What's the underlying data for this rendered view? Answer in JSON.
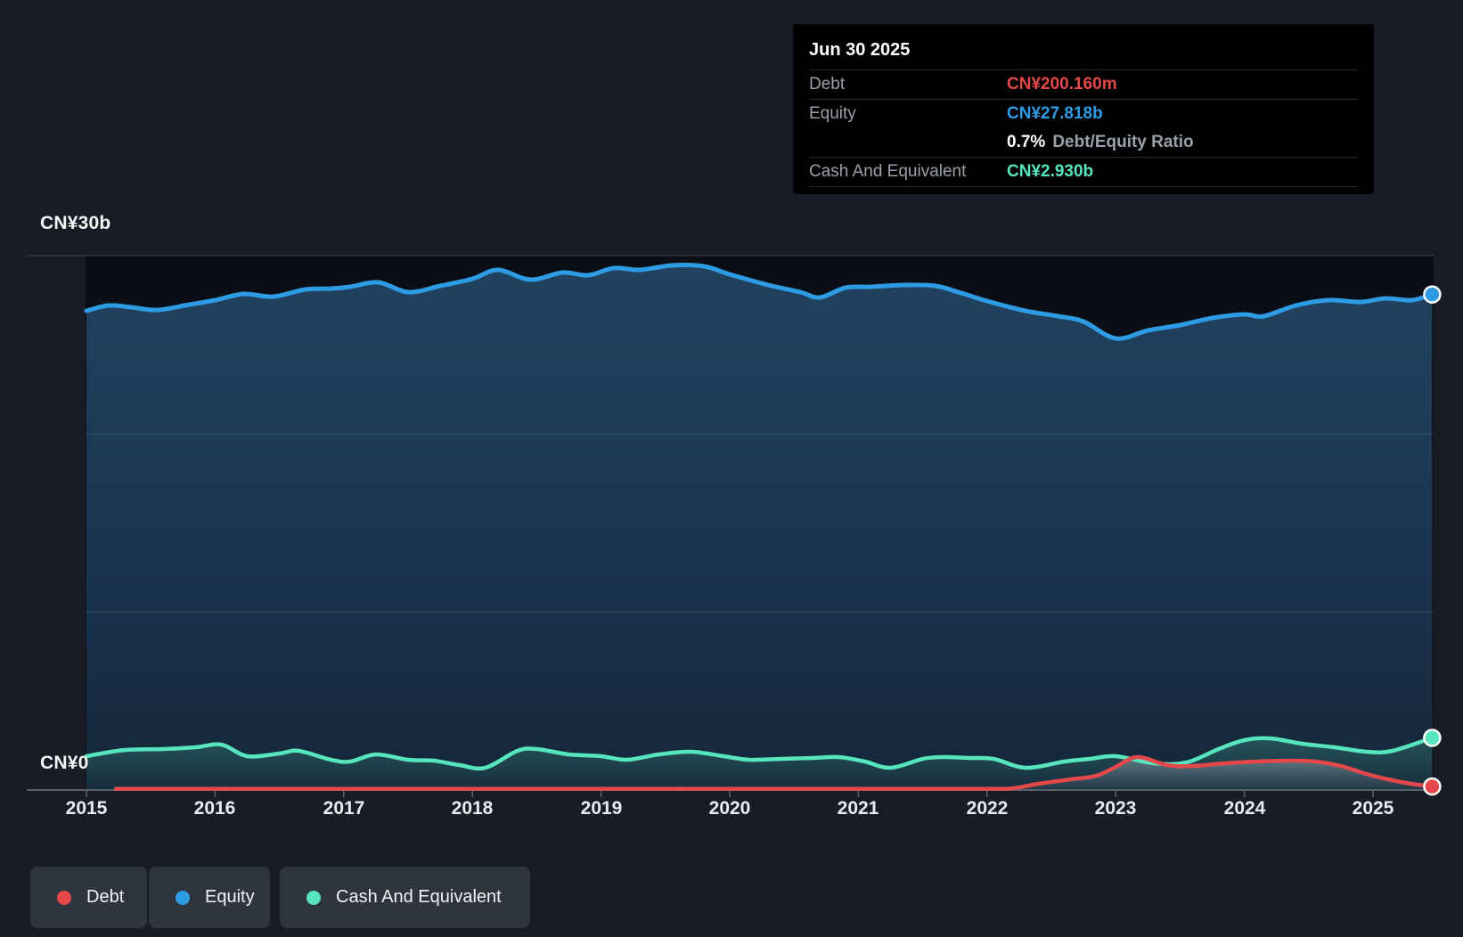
{
  "tooltip": {
    "date": "Jun 30 2025",
    "debt_label": "Debt",
    "debt_value": "CN¥200.160m",
    "equity_label": "Equity",
    "equity_value": "CN¥27.818b",
    "ratio_value": "0.7%",
    "ratio_label": "Debt/Equity Ratio",
    "cash_label": "Cash And Equivalent",
    "cash_value": "CN¥2.930b"
  },
  "y_axis": {
    "top_label": "CN¥30b",
    "zero_label": "CN¥0"
  },
  "x_axis": {
    "years": [
      "2015",
      "2016",
      "2017",
      "2018",
      "2019",
      "2020",
      "2021",
      "2022",
      "2023",
      "2024",
      "2025"
    ]
  },
  "legend": {
    "items": [
      {
        "label": "Debt",
        "color": "#e4484a"
      },
      {
        "label": "Equity",
        "color": "#2e9ce4"
      },
      {
        "label": "Cash And Equivalent",
        "color": "#57e5be"
      }
    ]
  },
  "chart_data": {
    "type": "area",
    "title": "Debt to Equity History",
    "unit": "CN¥ billions",
    "x_label": "year",
    "x_range": [
      2015,
      2025.5
    ],
    "ylim": [
      0,
      30
    ],
    "y_gridlines_b": [
      0,
      10,
      20,
      30
    ],
    "x_ticks": [
      2015,
      2016,
      2017,
      2018,
      2019,
      2020,
      2021,
      2022,
      2023,
      2024,
      2025
    ],
    "legend_position": "bottom-left",
    "last_point_date": "Jun 30 2025",
    "series": [
      {
        "name": "Equity",
        "color": "#2e9ce4",
        "final_value_b": 27.818,
        "points": [
          [
            2015.0,
            26.9
          ],
          [
            2015.17,
            27.2
          ],
          [
            2015.35,
            27.1
          ],
          [
            2015.55,
            26.95
          ],
          [
            2015.8,
            27.25
          ],
          [
            2016.0,
            27.5
          ],
          [
            2016.22,
            27.85
          ],
          [
            2016.45,
            27.7
          ],
          [
            2016.7,
            28.1
          ],
          [
            2016.9,
            28.15
          ],
          [
            2017.05,
            28.25
          ],
          [
            2017.27,
            28.5
          ],
          [
            2017.5,
            27.95
          ],
          [
            2017.75,
            28.3
          ],
          [
            2018.0,
            28.7
          ],
          [
            2018.2,
            29.2
          ],
          [
            2018.45,
            28.65
          ],
          [
            2018.7,
            29.05
          ],
          [
            2018.9,
            28.9
          ],
          [
            2019.1,
            29.3
          ],
          [
            2019.3,
            29.2
          ],
          [
            2019.55,
            29.45
          ],
          [
            2019.8,
            29.4
          ],
          [
            2020.0,
            28.95
          ],
          [
            2020.3,
            28.35
          ],
          [
            2020.55,
            27.95
          ],
          [
            2020.7,
            27.65
          ],
          [
            2020.9,
            28.2
          ],
          [
            2021.1,
            28.25
          ],
          [
            2021.35,
            28.35
          ],
          [
            2021.6,
            28.3
          ],
          [
            2021.8,
            27.9
          ],
          [
            2022.0,
            27.45
          ],
          [
            2022.3,
            26.9
          ],
          [
            2022.55,
            26.6
          ],
          [
            2022.75,
            26.3
          ],
          [
            2023.0,
            25.35
          ],
          [
            2023.25,
            25.8
          ],
          [
            2023.5,
            26.1
          ],
          [
            2023.75,
            26.5
          ],
          [
            2024.0,
            26.7
          ],
          [
            2024.15,
            26.6
          ],
          [
            2024.4,
            27.2
          ],
          [
            2024.65,
            27.5
          ],
          [
            2024.9,
            27.4
          ],
          [
            2025.1,
            27.6
          ],
          [
            2025.3,
            27.5
          ],
          [
            2025.46,
            27.818
          ]
        ]
      },
      {
        "name": "Cash And Equivalent",
        "color": "#57e5be",
        "final_value_b": 2.93,
        "points": [
          [
            2015.0,
            1.9
          ],
          [
            2015.3,
            2.25
          ],
          [
            2015.6,
            2.3
          ],
          [
            2015.85,
            2.4
          ],
          [
            2016.05,
            2.55
          ],
          [
            2016.25,
            1.9
          ],
          [
            2016.5,
            2.05
          ],
          [
            2016.65,
            2.2
          ],
          [
            2016.9,
            1.7
          ],
          [
            2017.05,
            1.6
          ],
          [
            2017.25,
            2.0
          ],
          [
            2017.5,
            1.7
          ],
          [
            2017.7,
            1.65
          ],
          [
            2017.9,
            1.4
          ],
          [
            2018.1,
            1.25
          ],
          [
            2018.35,
            2.2
          ],
          [
            2018.5,
            2.3
          ],
          [
            2018.75,
            2.0
          ],
          [
            2019.0,
            1.9
          ],
          [
            2019.2,
            1.7
          ],
          [
            2019.45,
            2.0
          ],
          [
            2019.7,
            2.15
          ],
          [
            2019.95,
            1.9
          ],
          [
            2020.15,
            1.7
          ],
          [
            2020.4,
            1.75
          ],
          [
            2020.65,
            1.8
          ],
          [
            2020.85,
            1.85
          ],
          [
            2021.05,
            1.6
          ],
          [
            2021.25,
            1.25
          ],
          [
            2021.5,
            1.75
          ],
          [
            2021.65,
            1.85
          ],
          [
            2021.85,
            1.8
          ],
          [
            2022.05,
            1.75
          ],
          [
            2022.3,
            1.25
          ],
          [
            2022.6,
            1.6
          ],
          [
            2022.8,
            1.75
          ],
          [
            2023.0,
            1.9
          ],
          [
            2023.3,
            1.5
          ],
          [
            2023.55,
            1.55
          ],
          [
            2023.8,
            2.3
          ],
          [
            2024.0,
            2.8
          ],
          [
            2024.2,
            2.9
          ],
          [
            2024.45,
            2.6
          ],
          [
            2024.7,
            2.4
          ],
          [
            2024.95,
            2.15
          ],
          [
            2025.15,
            2.2
          ],
          [
            2025.46,
            2.93
          ]
        ]
      },
      {
        "name": "Debt",
        "color": "#e4484a",
        "final_value_b": 0.2,
        "points": [
          [
            2015.23,
            0.07
          ],
          [
            2016,
            0.07
          ],
          [
            2017,
            0.07
          ],
          [
            2018,
            0.07
          ],
          [
            2019,
            0.07
          ],
          [
            2020,
            0.07
          ],
          [
            2021,
            0.07
          ],
          [
            2022.0,
            0.07
          ],
          [
            2022.2,
            0.1
          ],
          [
            2022.4,
            0.35
          ],
          [
            2022.65,
            0.6
          ],
          [
            2022.85,
            0.8
          ],
          [
            2023.0,
            1.3
          ],
          [
            2023.17,
            1.85
          ],
          [
            2023.4,
            1.4
          ],
          [
            2023.6,
            1.35
          ],
          [
            2023.85,
            1.5
          ],
          [
            2024.1,
            1.6
          ],
          [
            2024.35,
            1.65
          ],
          [
            2024.55,
            1.6
          ],
          [
            2024.75,
            1.35
          ],
          [
            2024.95,
            0.9
          ],
          [
            2025.15,
            0.55
          ],
          [
            2025.3,
            0.35
          ],
          [
            2025.46,
            0.2
          ]
        ]
      }
    ]
  }
}
